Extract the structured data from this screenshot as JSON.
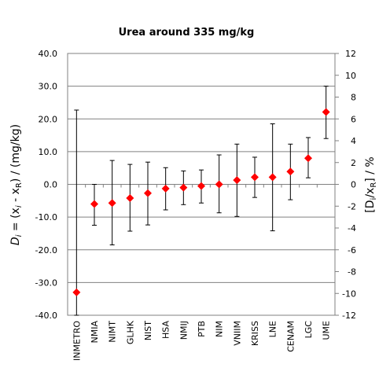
{
  "chart_data": {
    "type": "scatter",
    "title": "Urea around 335 mg/kg",
    "ylabel_left": {
      "main": "D",
      "sub_i": "i",
      "rest1": " = (x",
      "sub_i2": "i",
      "rest2": " - x",
      "sub_R": "R",
      "rest3": ") / (mg/kg)"
    },
    "ylabel_right": {
      "open": "[D",
      "sub_i": "i",
      "mid": "/x",
      "sub_R": "R",
      "close": "] / %"
    },
    "ylim_left": [
      -40,
      40
    ],
    "ylim_right": [
      -12,
      12
    ],
    "yticks_left": [
      "40.0",
      "30.0",
      "20.0",
      "10.0",
      "0.0",
      "-10.0",
      "-20.0",
      "-30.0",
      "-40.0"
    ],
    "yticks_right": [
      "12",
      "10",
      "8",
      "6",
      "4",
      "2",
      "0",
      "-2",
      "-4",
      "-6",
      "-8",
      "-10",
      "-12"
    ],
    "grid": "horizontal",
    "marker_color": "#ff0000",
    "categories": [
      "INMETRO",
      "NMIA",
      "NIMT",
      "GLHK",
      "NIST",
      "HSA",
      "NMIJ",
      "PTB",
      "NIM",
      "VNIIM",
      "KRISS",
      "LNE",
      "CENAM",
      "LGC",
      "UME"
    ],
    "values": [
      -33.0,
      -6.0,
      -5.7,
      -4.2,
      -2.7,
      -1.3,
      -1.0,
      -0.5,
      0.0,
      1.3,
      2.2,
      2.2,
      3.9,
      8.0,
      22.1
    ],
    "error_low": [
      -40.0,
      -12.5,
      -18.5,
      -14.3,
      -12.4,
      -7.8,
      -6.2,
      -5.7,
      -8.7,
      -9.8,
      -4.0,
      -14.2,
      -4.7,
      2.0,
      14.0
    ],
    "error_high": [
      22.7,
      0.0,
      7.3,
      6.1,
      6.8,
      5.1,
      4.1,
      4.4,
      9.0,
      12.3,
      8.3,
      18.5,
      12.3,
      14.3,
      30.0
    ]
  }
}
